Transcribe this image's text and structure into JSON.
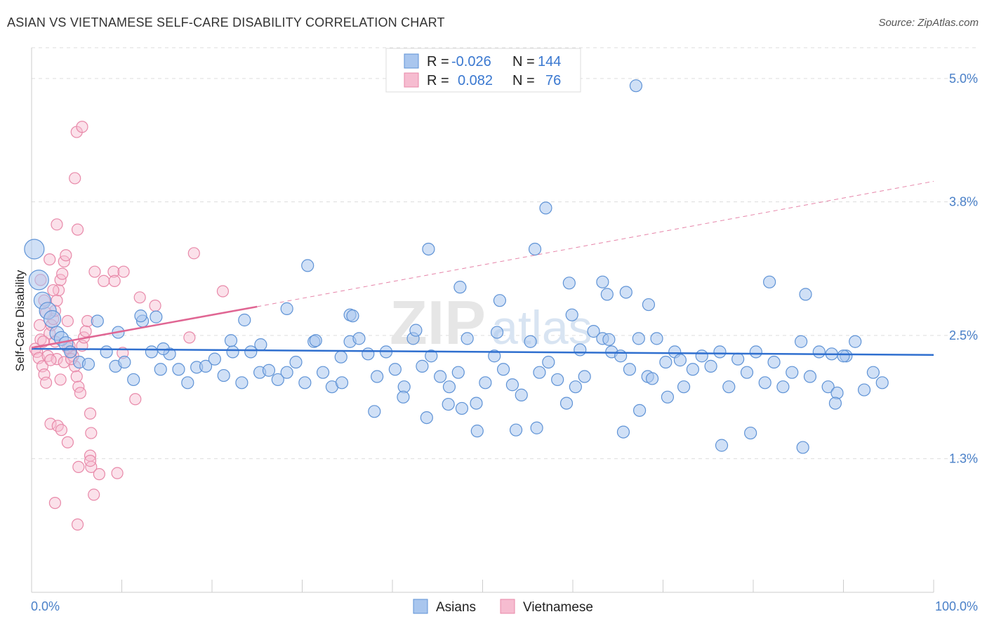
{
  "title": "ASIAN VS VIETNAMESE SELF-CARE DISABILITY CORRELATION CHART",
  "source": "Source: ZipAtlas.com",
  "watermark": {
    "a": "ZIP",
    "b": "atlas"
  },
  "legend": {
    "rows": [
      {
        "r_label": "R =",
        "r_value": "-0.026",
        "n_label": "N =",
        "n_value": "144"
      },
      {
        "r_label": "R =",
        "r_value": "0.082",
        "n_label": "N =",
        "n_value": "76"
      }
    ]
  },
  "bottom_legend": {
    "asians": "Asians",
    "vietnamese": "Vietnamese"
  },
  "colors": {
    "asian_fill": "#a9c6ee",
    "asian_stroke": "#5f93d6",
    "asian_line": "#2f6fcf",
    "viet_fill": "#f6bcd0",
    "viet_stroke": "#e889a9",
    "viet_line": "#e06693",
    "tick_label": "#4a80c8",
    "grid": "#dddddd"
  },
  "chart_data": {
    "type": "scatter",
    "title": "ASIAN VS VIETNAMESE SELF-CARE DISABILITY CORRELATION CHART",
    "xlabel": "",
    "ylabel": "Self-Care Disability",
    "xlim": [
      0,
      100
    ],
    "ylim": [
      0.0,
      5.3
    ],
    "x_tick_labels": [
      "0.0%",
      "100.0%"
    ],
    "y_ticks": [
      1.3,
      2.5,
      3.8,
      5.0
    ],
    "y_tick_labels": [
      "1.3%",
      "2.5%",
      "3.8%",
      "5.0%"
    ],
    "grid": true,
    "legend_position": "top-center",
    "series": [
      {
        "name": "Asians",
        "trend": {
          "x": [
            0,
            100
          ],
          "y": [
            2.37,
            2.31
          ]
        },
        "points": [
          [
            0.3,
            3.34
          ],
          [
            0.8,
            3.04
          ],
          [
            1.2,
            2.84
          ],
          [
            1.8,
            2.74
          ],
          [
            2.3,
            2.66
          ],
          [
            2.8,
            2.52
          ],
          [
            3.3,
            2.47
          ],
          [
            3.8,
            2.42
          ],
          [
            4.3,
            2.34
          ],
          [
            5.3,
            2.24
          ],
          [
            6.3,
            2.22
          ],
          [
            7.3,
            2.64
          ],
          [
            8.3,
            2.34
          ],
          [
            9.3,
            2.2
          ],
          [
            10.3,
            2.24
          ],
          [
            11.3,
            2.07
          ],
          [
            12.3,
            2.64
          ],
          [
            13.3,
            2.34
          ],
          [
            14.3,
            2.17
          ],
          [
            15.3,
            2.32
          ],
          [
            16.3,
            2.17
          ],
          [
            17.3,
            2.04
          ],
          [
            18.3,
            2.19
          ],
          [
            19.3,
            2.2
          ],
          [
            20.3,
            2.27
          ],
          [
            21.3,
            2.11
          ],
          [
            22.3,
            2.34
          ],
          [
            23.3,
            2.04
          ],
          [
            24.3,
            2.34
          ],
          [
            25.3,
            2.14
          ],
          [
            26.3,
            2.16
          ],
          [
            27.3,
            2.07
          ],
          [
            28.3,
            2.14
          ],
          [
            29.3,
            2.24
          ],
          [
            30.3,
            2.04
          ],
          [
            31.3,
            2.44
          ],
          [
            32.3,
            2.14
          ],
          [
            33.3,
            2.0
          ],
          [
            34.3,
            2.29
          ],
          [
            35.3,
            2.44
          ],
          [
            36.3,
            2.47
          ],
          [
            37.3,
            2.32
          ],
          [
            38.3,
            2.1
          ],
          [
            39.3,
            2.34
          ],
          [
            40.3,
            2.17
          ],
          [
            41.3,
            2.0
          ],
          [
            42.3,
            2.47
          ],
          [
            43.3,
            2.2
          ],
          [
            44.3,
            2.3
          ],
          [
            45.3,
            2.1
          ],
          [
            46.3,
            2.0
          ],
          [
            47.3,
            2.14
          ],
          [
            48.3,
            2.47
          ],
          [
            49.3,
            1.84
          ],
          [
            50.3,
            2.04
          ],
          [
            51.3,
            2.3
          ],
          [
            52.3,
            2.17
          ],
          [
            53.3,
            2.02
          ],
          [
            54.3,
            1.92
          ],
          [
            55.3,
            2.44
          ],
          [
            56.3,
            2.14
          ],
          [
            57.3,
            2.24
          ],
          [
            58.3,
            2.07
          ],
          [
            59.3,
            1.84
          ],
          [
            60.3,
            2.0
          ],
          [
            61.3,
            2.1
          ],
          [
            62.3,
            2.54
          ],
          [
            63.3,
            2.47
          ],
          [
            64.3,
            2.34
          ],
          [
            65.3,
            2.3
          ],
          [
            66.3,
            2.17
          ],
          [
            67.3,
            2.47
          ],
          [
            68.3,
            2.1
          ],
          [
            69.3,
            2.47
          ],
          [
            70.3,
            2.24
          ],
          [
            71.3,
            2.34
          ],
          [
            72.3,
            2.0
          ],
          [
            73.3,
            2.17
          ],
          [
            74.3,
            2.3
          ],
          [
            75.3,
            2.2
          ],
          [
            76.3,
            2.34
          ],
          [
            77.3,
            2.0
          ],
          [
            78.3,
            2.27
          ],
          [
            79.3,
            2.14
          ],
          [
            80.3,
            2.34
          ],
          [
            81.3,
            2.04
          ],
          [
            82.3,
            2.24
          ],
          [
            83.3,
            2.0
          ],
          [
            84.3,
            2.14
          ],
          [
            85.3,
            2.44
          ],
          [
            86.3,
            2.1
          ],
          [
            87.3,
            2.34
          ],
          [
            88.3,
            2.0
          ],
          [
            89.3,
            1.94
          ],
          [
            90.3,
            2.3
          ],
          [
            91.3,
            2.44
          ],
          [
            92.3,
            1.97
          ],
          [
            93.3,
            2.14
          ],
          [
            94.3,
            2.04
          ],
          [
            67.0,
            4.93
          ],
          [
            57.0,
            3.74
          ],
          [
            55.8,
            3.34
          ],
          [
            44.0,
            3.34
          ],
          [
            30.6,
            3.18
          ],
          [
            63.3,
            3.02
          ],
          [
            59.6,
            3.01
          ],
          [
            81.8,
            3.02
          ],
          [
            51.9,
            2.84
          ],
          [
            47.5,
            2.97
          ],
          [
            35.3,
            2.7
          ],
          [
            35.6,
            2.69
          ],
          [
            63.8,
            2.9
          ],
          [
            59.9,
            2.7
          ],
          [
            51.6,
            2.53
          ],
          [
            65.9,
            2.92
          ],
          [
            85.8,
            2.9
          ],
          [
            68.4,
            2.8
          ],
          [
            28.3,
            2.76
          ],
          [
            31.5,
            2.45
          ],
          [
            9.6,
            2.53
          ],
          [
            12.1,
            2.69
          ],
          [
            13.8,
            2.68
          ],
          [
            23.6,
            2.65
          ],
          [
            42.6,
            2.55
          ],
          [
            60.8,
            2.36
          ],
          [
            64.0,
            2.46
          ],
          [
            71.9,
            2.26
          ],
          [
            68.8,
            2.08
          ],
          [
            70.5,
            1.9
          ],
          [
            14.6,
            2.37
          ],
          [
            34.4,
            2.04
          ],
          [
            38.0,
            1.76
          ],
          [
            41.2,
            1.9
          ],
          [
            43.8,
            1.7
          ],
          [
            47.7,
            1.79
          ],
          [
            46.2,
            1.83
          ],
          [
            49.4,
            1.57
          ],
          [
            53.7,
            1.58
          ],
          [
            56.0,
            1.6
          ],
          [
            65.6,
            1.56
          ],
          [
            67.4,
            1.77
          ],
          [
            85.5,
            1.41
          ],
          [
            76.5,
            1.43
          ],
          [
            79.7,
            1.55
          ],
          [
            89.1,
            1.84
          ],
          [
            90.0,
            2.3
          ],
          [
            88.7,
            2.32
          ],
          [
            22.1,
            2.45
          ],
          [
            25.4,
            2.41
          ]
        ]
      },
      {
        "name": "Vietnamese",
        "trend": {
          "x": [
            0,
            25
          ],
          "y": [
            2.38,
            2.78
          ],
          "extended": {
            "x": [
              25,
              100
            ],
            "y": [
              2.78,
              4.0
            ]
          }
        },
        "points": [
          [
            0.4,
            2.37
          ],
          [
            0.6,
            2.34
          ],
          [
            0.8,
            2.28
          ],
          [
            1.0,
            2.46
          ],
          [
            1.2,
            2.2
          ],
          [
            1.4,
            2.12
          ],
          [
            1.6,
            2.04
          ],
          [
            1.8,
            2.3
          ],
          [
            2.0,
            2.52
          ],
          [
            2.2,
            2.6
          ],
          [
            2.4,
            2.66
          ],
          [
            2.6,
            2.74
          ],
          [
            2.8,
            2.84
          ],
          [
            3.0,
            2.94
          ],
          [
            3.2,
            3.04
          ],
          [
            3.4,
            3.1
          ],
          [
            3.6,
            3.22
          ],
          [
            3.8,
            3.28
          ],
          [
            4.0,
            2.64
          ],
          [
            4.2,
            2.4
          ],
          [
            4.4,
            2.34
          ],
          [
            4.6,
            2.3
          ],
          [
            4.8,
            2.2
          ],
          [
            5.0,
            2.1
          ],
          [
            5.2,
            2.0
          ],
          [
            5.4,
            1.94
          ],
          [
            5.6,
            2.4
          ],
          [
            5.8,
            2.48
          ],
          [
            6.0,
            2.54
          ],
          [
            6.2,
            2.64
          ],
          [
            1.0,
            3.04
          ],
          [
            1.4,
            2.84
          ],
          [
            2.0,
            3.24
          ],
          [
            2.4,
            2.94
          ],
          [
            2.6,
            2.44
          ],
          [
            2.8,
            2.27
          ],
          [
            3.2,
            2.07
          ],
          [
            3.6,
            2.24
          ],
          [
            4.0,
            2.38
          ],
          [
            4.4,
            2.27
          ],
          [
            5.0,
            4.48
          ],
          [
            5.6,
            4.53
          ],
          [
            4.8,
            4.03
          ],
          [
            2.8,
            3.58
          ],
          [
            5.1,
            3.53
          ],
          [
            18.0,
            3.3
          ],
          [
            7.0,
            3.12
          ],
          [
            9.1,
            3.12
          ],
          [
            10.2,
            3.12
          ],
          [
            2.1,
            1.64
          ],
          [
            2.9,
            1.62
          ],
          [
            3.3,
            1.58
          ],
          [
            4.0,
            1.46
          ],
          [
            6.5,
            1.74
          ],
          [
            6.6,
            1.55
          ],
          [
            6.5,
            1.33
          ],
          [
            5.2,
            1.22
          ],
          [
            6.6,
            1.22
          ],
          [
            7.5,
            1.15
          ],
          [
            9.5,
            1.16
          ],
          [
            8.0,
            3.03
          ],
          [
            9.2,
            3.03
          ],
          [
            12.0,
            2.87
          ],
          [
            13.7,
            2.79
          ],
          [
            6.5,
            1.28
          ],
          [
            2.6,
            0.87
          ],
          [
            5.1,
            0.66
          ],
          [
            6.9,
            0.95
          ],
          [
            10.1,
            2.33
          ],
          [
            11.5,
            1.88
          ],
          [
            17.5,
            2.48
          ],
          [
            21.2,
            2.93
          ],
          [
            2.1,
            2.26
          ],
          [
            1.3,
            2.44
          ],
          [
            0.9,
            2.6
          ],
          [
            1.6,
            2.72
          ]
        ]
      }
    ]
  }
}
